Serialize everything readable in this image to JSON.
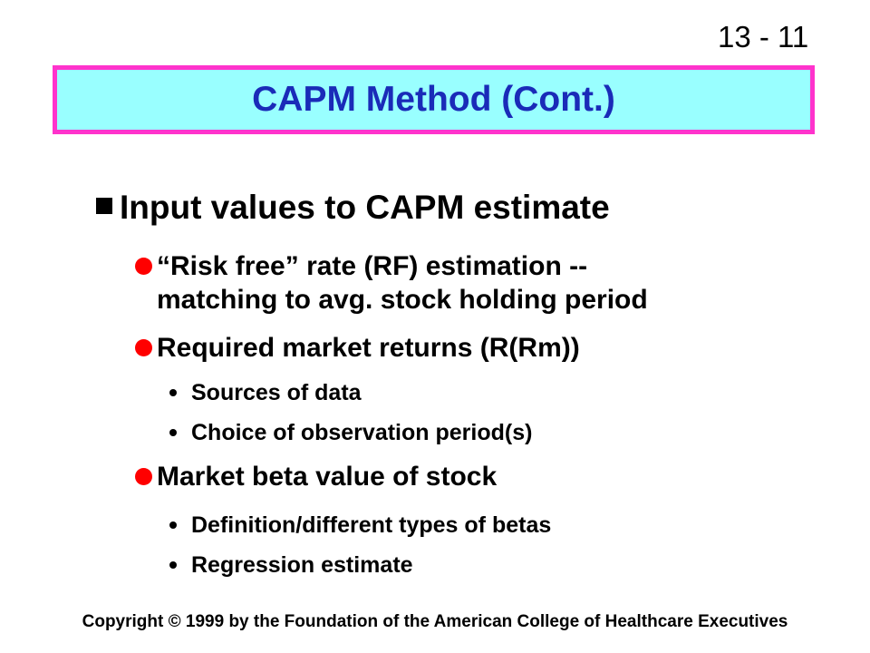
{
  "slide_number": "13 - 11",
  "title": "CAPM Method (Cont.)",
  "colors": {
    "title_text": "#1a2bb8",
    "title_background": "#99ffff",
    "title_border": "#ff33cc",
    "level2_bullet": "#ff0000"
  },
  "icons": {
    "level1_bullet": "square-bullet-icon",
    "level2_bullet": "round-bullet-icon",
    "level3_bullet": "dot-bullet-icon"
  },
  "content": {
    "heading": "Input values to CAPM estimate",
    "rf_line1": "“Risk free” rate (RF) estimation --",
    "rf_line2": "matching to avg. stock holding period",
    "market_returns": "Required market returns (R(Rm))",
    "sources_of_data": "Sources of data",
    "observation_period": "Choice of observation period(s)",
    "market_beta": "Market beta value of stock",
    "beta_types": "Definition/different types of betas",
    "regression": "Regression estimate"
  },
  "footer": {
    "copyright": "Copyright © 1999 by the Foundation of the American College of Healthcare Executives"
  }
}
